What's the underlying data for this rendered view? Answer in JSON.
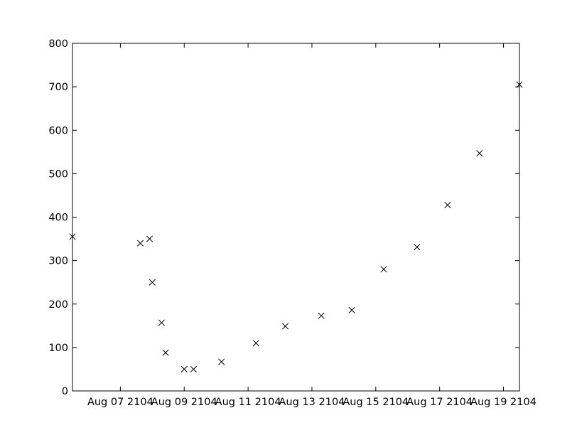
{
  "chart_data": {
    "type": "scatter",
    "title": "",
    "xlabel": "",
    "ylabel": "",
    "marker": "x",
    "marker_color": "#000000",
    "grid": false,
    "xlim": [
      "2104-08-05T12:00",
      "2104-08-19T12:00"
    ],
    "ylim": [
      0,
      800
    ],
    "x_ticks": [
      {
        "value": "2104-08-07",
        "label": "Aug 07 2104"
      },
      {
        "value": "2104-08-09",
        "label": "Aug 09 2104"
      },
      {
        "value": "2104-08-11",
        "label": "Aug 11 2104"
      },
      {
        "value": "2104-08-13",
        "label": "Aug 13 2104"
      },
      {
        "value": "2104-08-15",
        "label": "Aug 15 2104"
      },
      {
        "value": "2104-08-17",
        "label": "Aug 17 2104"
      },
      {
        "value": "2104-08-19",
        "label": "Aug 19 2104"
      }
    ],
    "y_ticks": [
      {
        "value": 0,
        "label": "0"
      },
      {
        "value": 100,
        "label": "100"
      },
      {
        "value": 200,
        "label": "200"
      },
      {
        "value": 300,
        "label": "300"
      },
      {
        "value": 400,
        "label": "400"
      },
      {
        "value": 500,
        "label": "500"
      },
      {
        "value": 600,
        "label": "600"
      },
      {
        "value": 700,
        "label": "700"
      },
      {
        "value": 800,
        "label": "800"
      }
    ],
    "points": [
      {
        "x": "2104-08-05T12:00",
        "y": 355
      },
      {
        "x": "2104-08-07T15:00",
        "y": 340
      },
      {
        "x": "2104-08-07T22:00",
        "y": 350
      },
      {
        "x": "2104-08-08T00:00",
        "y": 250
      },
      {
        "x": "2104-08-08T07:00",
        "y": 157
      },
      {
        "x": "2104-08-08T10:00",
        "y": 88
      },
      {
        "x": "2104-08-09T00:00",
        "y": 50
      },
      {
        "x": "2104-08-09T07:00",
        "y": 50
      },
      {
        "x": "2104-08-10T04:00",
        "y": 67
      },
      {
        "x": "2104-08-11T06:00",
        "y": 110
      },
      {
        "x": "2104-08-12T04:00",
        "y": 149
      },
      {
        "x": "2104-08-13T07:00",
        "y": 173
      },
      {
        "x": "2104-08-14T06:00",
        "y": 186
      },
      {
        "x": "2104-08-15T06:00",
        "y": 280
      },
      {
        "x": "2104-08-16T07:00",
        "y": 331
      },
      {
        "x": "2104-08-17T06:00",
        "y": 428
      },
      {
        "x": "2104-08-18T06:00",
        "y": 547
      },
      {
        "x": "2104-08-19T12:00",
        "y": 705
      }
    ]
  }
}
